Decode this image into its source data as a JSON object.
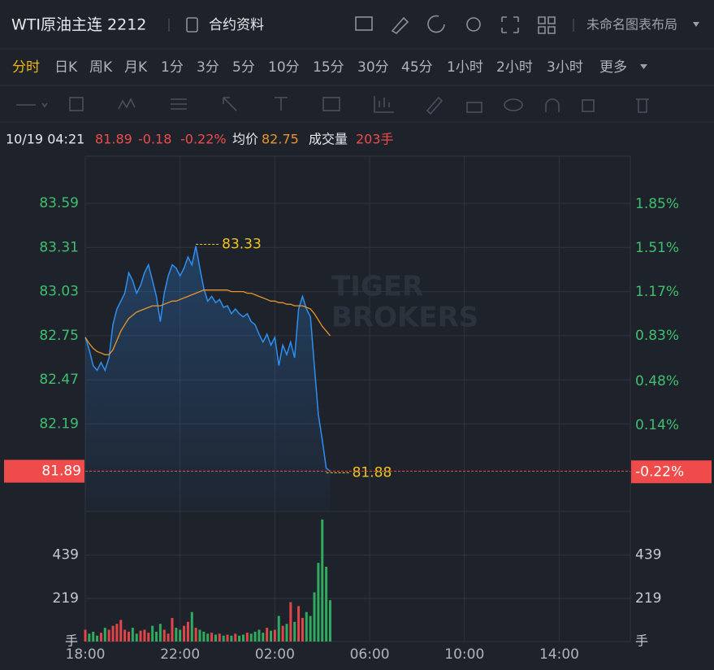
{
  "header": {
    "title": "WTI原油主连 2212",
    "contract": "合约资料",
    "layout": "未命名图表布局"
  },
  "periods": {
    "items": [
      "分时",
      "日K",
      "周K",
      "月K",
      "1分",
      "3分",
      "5分",
      "10分",
      "15分",
      "30分",
      "45分",
      "1小时",
      "2小时",
      "3小时",
      "更多"
    ],
    "active": 0
  },
  "info": {
    "datetime": "10/19 04:21",
    "price": 81.89,
    "change": -0.18,
    "change_pct": "-0.22%",
    "avg_label": "均价",
    "avg": 82.75,
    "volume_label": "成交量",
    "volume": "203手"
  },
  "chart_data": {
    "type": "line",
    "watermark": [
      "TIGER",
      "BROKERS"
    ],
    "x": [
      "18:00",
      "18:10",
      "18:20",
      "18:30",
      "18:40",
      "18:50",
      "19:00",
      "19:10",
      "19:20",
      "19:30",
      "19:40",
      "19:50",
      "20:00",
      "20:10",
      "20:20",
      "20:30",
      "20:40",
      "20:50",
      "21:00",
      "21:10",
      "21:20",
      "21:30",
      "21:40",
      "21:50",
      "22:00",
      "22:10",
      "22:20",
      "22:30",
      "22:40",
      "22:50",
      "23:00",
      "23:10",
      "23:20",
      "23:30",
      "23:40",
      "23:50",
      "00:00",
      "00:10",
      "00:20",
      "00:30",
      "00:40",
      "00:50",
      "01:00",
      "01:10",
      "01:20",
      "01:30",
      "01:40",
      "01:50",
      "02:00",
      "02:10",
      "02:20",
      "02:30",
      "02:40",
      "02:50",
      "03:00",
      "03:10",
      "03:20",
      "03:30",
      "03:40",
      "03:50",
      "04:00",
      "04:10",
      "04:20"
    ],
    "xlim": [
      "18:00",
      "17:00"
    ],
    "xticks": [
      "18:00",
      "22:00",
      "02:00",
      "06:00",
      "10:00",
      "14:00"
    ],
    "price": {
      "color": "#2f8ff0",
      "values": [
        82.74,
        82.66,
        82.56,
        82.53,
        82.58,
        82.53,
        82.61,
        82.82,
        82.92,
        82.97,
        83.02,
        83.15,
        83.1,
        83.02,
        83.07,
        83.15,
        83.2,
        83.1,
        83.0,
        82.84,
        83.02,
        83.13,
        83.2,
        83.18,
        83.13,
        83.18,
        83.25,
        83.2,
        83.32,
        83.18,
        83.05,
        82.97,
        83.0,
        82.96,
        82.98,
        82.93,
        82.94,
        82.89,
        82.92,
        82.89,
        82.87,
        82.89,
        82.84,
        82.82,
        82.76,
        82.71,
        82.76,
        82.69,
        82.74,
        82.56,
        82.69,
        82.63,
        82.71,
        82.61,
        82.92,
        83.0,
        82.92,
        82.87,
        82.56,
        82.25,
        82.09,
        81.91,
        81.89
      ]
    },
    "avg": {
      "color": "#e8952a",
      "values": [
        82.74,
        82.7,
        82.67,
        82.65,
        82.64,
        82.63,
        82.63,
        82.66,
        82.72,
        82.78,
        82.82,
        82.86,
        82.88,
        82.9,
        82.91,
        82.92,
        82.93,
        82.94,
        82.94,
        82.94,
        82.95,
        82.96,
        82.97,
        82.97,
        82.98,
        82.99,
        83.0,
        83.01,
        83.02,
        83.03,
        83.04,
        83.04,
        83.04,
        83.04,
        83.04,
        83.04,
        83.04,
        83.03,
        83.03,
        83.03,
        83.03,
        83.02,
        83.02,
        83.01,
        83.0,
        82.99,
        82.98,
        82.97,
        82.97,
        82.96,
        82.96,
        82.95,
        82.95,
        82.94,
        82.94,
        82.94,
        82.93,
        82.92,
        82.89,
        82.85,
        82.81,
        82.78,
        82.75
      ]
    },
    "ylim": [
      81.64,
      83.89
    ],
    "yticks": [
      83.59,
      83.31,
      83.03,
      82.75,
      82.47,
      82.19
    ],
    "y2lim": [
      -0.52,
      2.22
    ],
    "y2ticks": [
      {
        "value": 1.85,
        "label": "1.85%"
      },
      {
        "value": 1.51,
        "label": "1.51%"
      },
      {
        "value": 1.17,
        "label": "1.17%"
      },
      {
        "value": 0.83,
        "label": "0.83%"
      },
      {
        "value": 0.48,
        "label": "0.48%"
      },
      {
        "value": 0.14,
        "label": "0.14%"
      }
    ],
    "last": {
      "value": 81.89,
      "pct": {
        "value": -0.22,
        "label": "-0.22%"
      }
    },
    "high": {
      "x": "22:40",
      "value": 83.33
    },
    "low": {
      "x": "04:10",
      "value": 81.88
    },
    "volume": {
      "up_color": "#e0454a",
      "down_color": "#2faa5e",
      "unit": "手",
      "ylim": [
        0,
        661
      ],
      "yticks": [
        439,
        219
      ],
      "values": [
        60,
        40,
        50,
        30,
        45,
        70,
        60,
        80,
        90,
        110,
        60,
        50,
        70,
        40,
        55,
        60,
        45,
        80,
        50,
        90,
        60,
        40,
        120,
        70,
        60,
        80,
        100,
        150,
        70,
        60,
        50,
        40,
        45,
        35,
        40,
        30,
        35,
        30,
        40,
        30,
        35,
        45,
        40,
        50,
        60,
        45,
        70,
        55,
        60,
        130,
        80,
        90,
        200,
        100,
        180,
        120,
        150,
        130,
        250,
        400,
        620,
        380,
        210
      ]
    }
  }
}
